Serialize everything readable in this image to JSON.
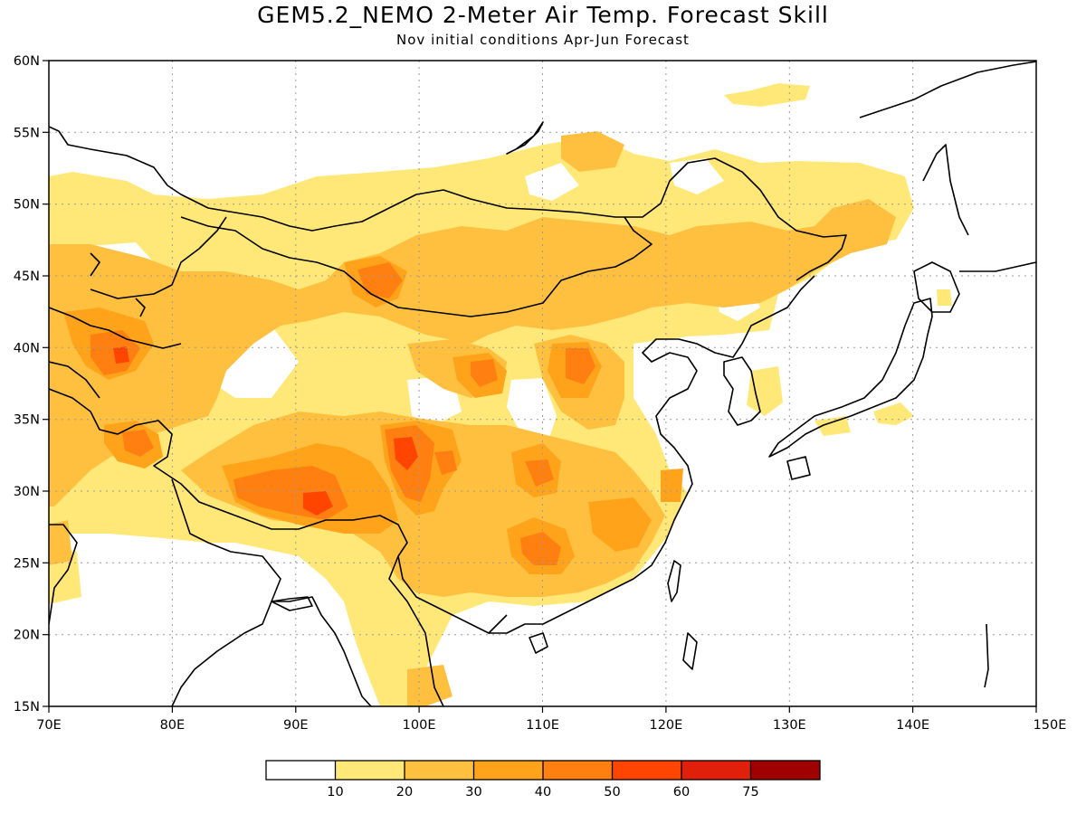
{
  "title": "GEM5.2_NEMO 2-Meter Air Temp. Forecast Skill",
  "subtitle": "Nov initial conditions  Apr-Jun Forecast",
  "map": {
    "lon_range": [
      70,
      150
    ],
    "lat_range": [
      15,
      60
    ],
    "lon_labels": [
      "70E",
      "80E",
      "90E",
      "100E",
      "110E",
      "120E",
      "130E",
      "140E",
      "150E"
    ],
    "lat_labels": [
      "15N",
      "20N",
      "25N",
      "30N",
      "35N",
      "40N",
      "45N",
      "50N",
      "55N",
      "60N"
    ],
    "gridlines": true
  },
  "colorbar": {
    "labels": [
      "10",
      "20",
      "30",
      "40",
      "50",
      "60",
      "75"
    ],
    "colors": [
      "#ffffff",
      "#ffe878",
      "#ffc040",
      "#ffa31a",
      "#ff7f10",
      "#ff4500",
      "#e0200a",
      "#a00000"
    ]
  }
}
